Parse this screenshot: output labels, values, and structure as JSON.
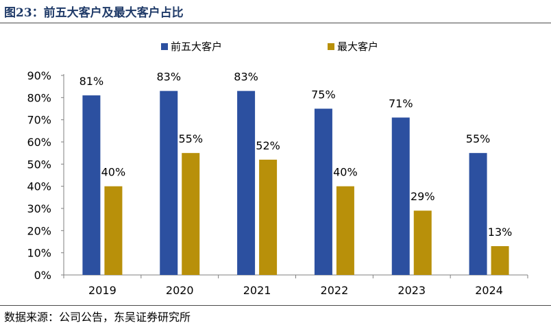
{
  "figure_title": "图23：前五大客户及最大客户占比",
  "source_note": "数据来源：公司公告，东吴证券研究所",
  "colors": {
    "series_top5": "#2c50a0",
    "series_top1": "#b8900a",
    "title": "#1f3a68"
  },
  "chart_data": {
    "type": "bar",
    "title": "",
    "xlabel": "",
    "ylabel": "",
    "categories": [
      "2019",
      "2020",
      "2021",
      "2022",
      "2023",
      "2024"
    ],
    "series": [
      {
        "name": "前五大客户",
        "values": [
          81,
          83,
          83,
          75,
          71,
          55
        ],
        "labels": [
          "81%",
          "83%",
          "83%",
          "75%",
          "71%",
          "55%"
        ]
      },
      {
        "name": "最大客户",
        "values": [
          40,
          55,
          52,
          40,
          29,
          13
        ],
        "labels": [
          "40%",
          "55%",
          "52%",
          "40%",
          "29%",
          "13%"
        ]
      }
    ],
    "ylim": [
      0,
      90
    ],
    "y_ticks": [
      "0%",
      "10%",
      "20%",
      "30%",
      "40%",
      "50%",
      "60%",
      "70%",
      "80%",
      "90%"
    ],
    "legend_position": "top-center",
    "grid": false
  }
}
